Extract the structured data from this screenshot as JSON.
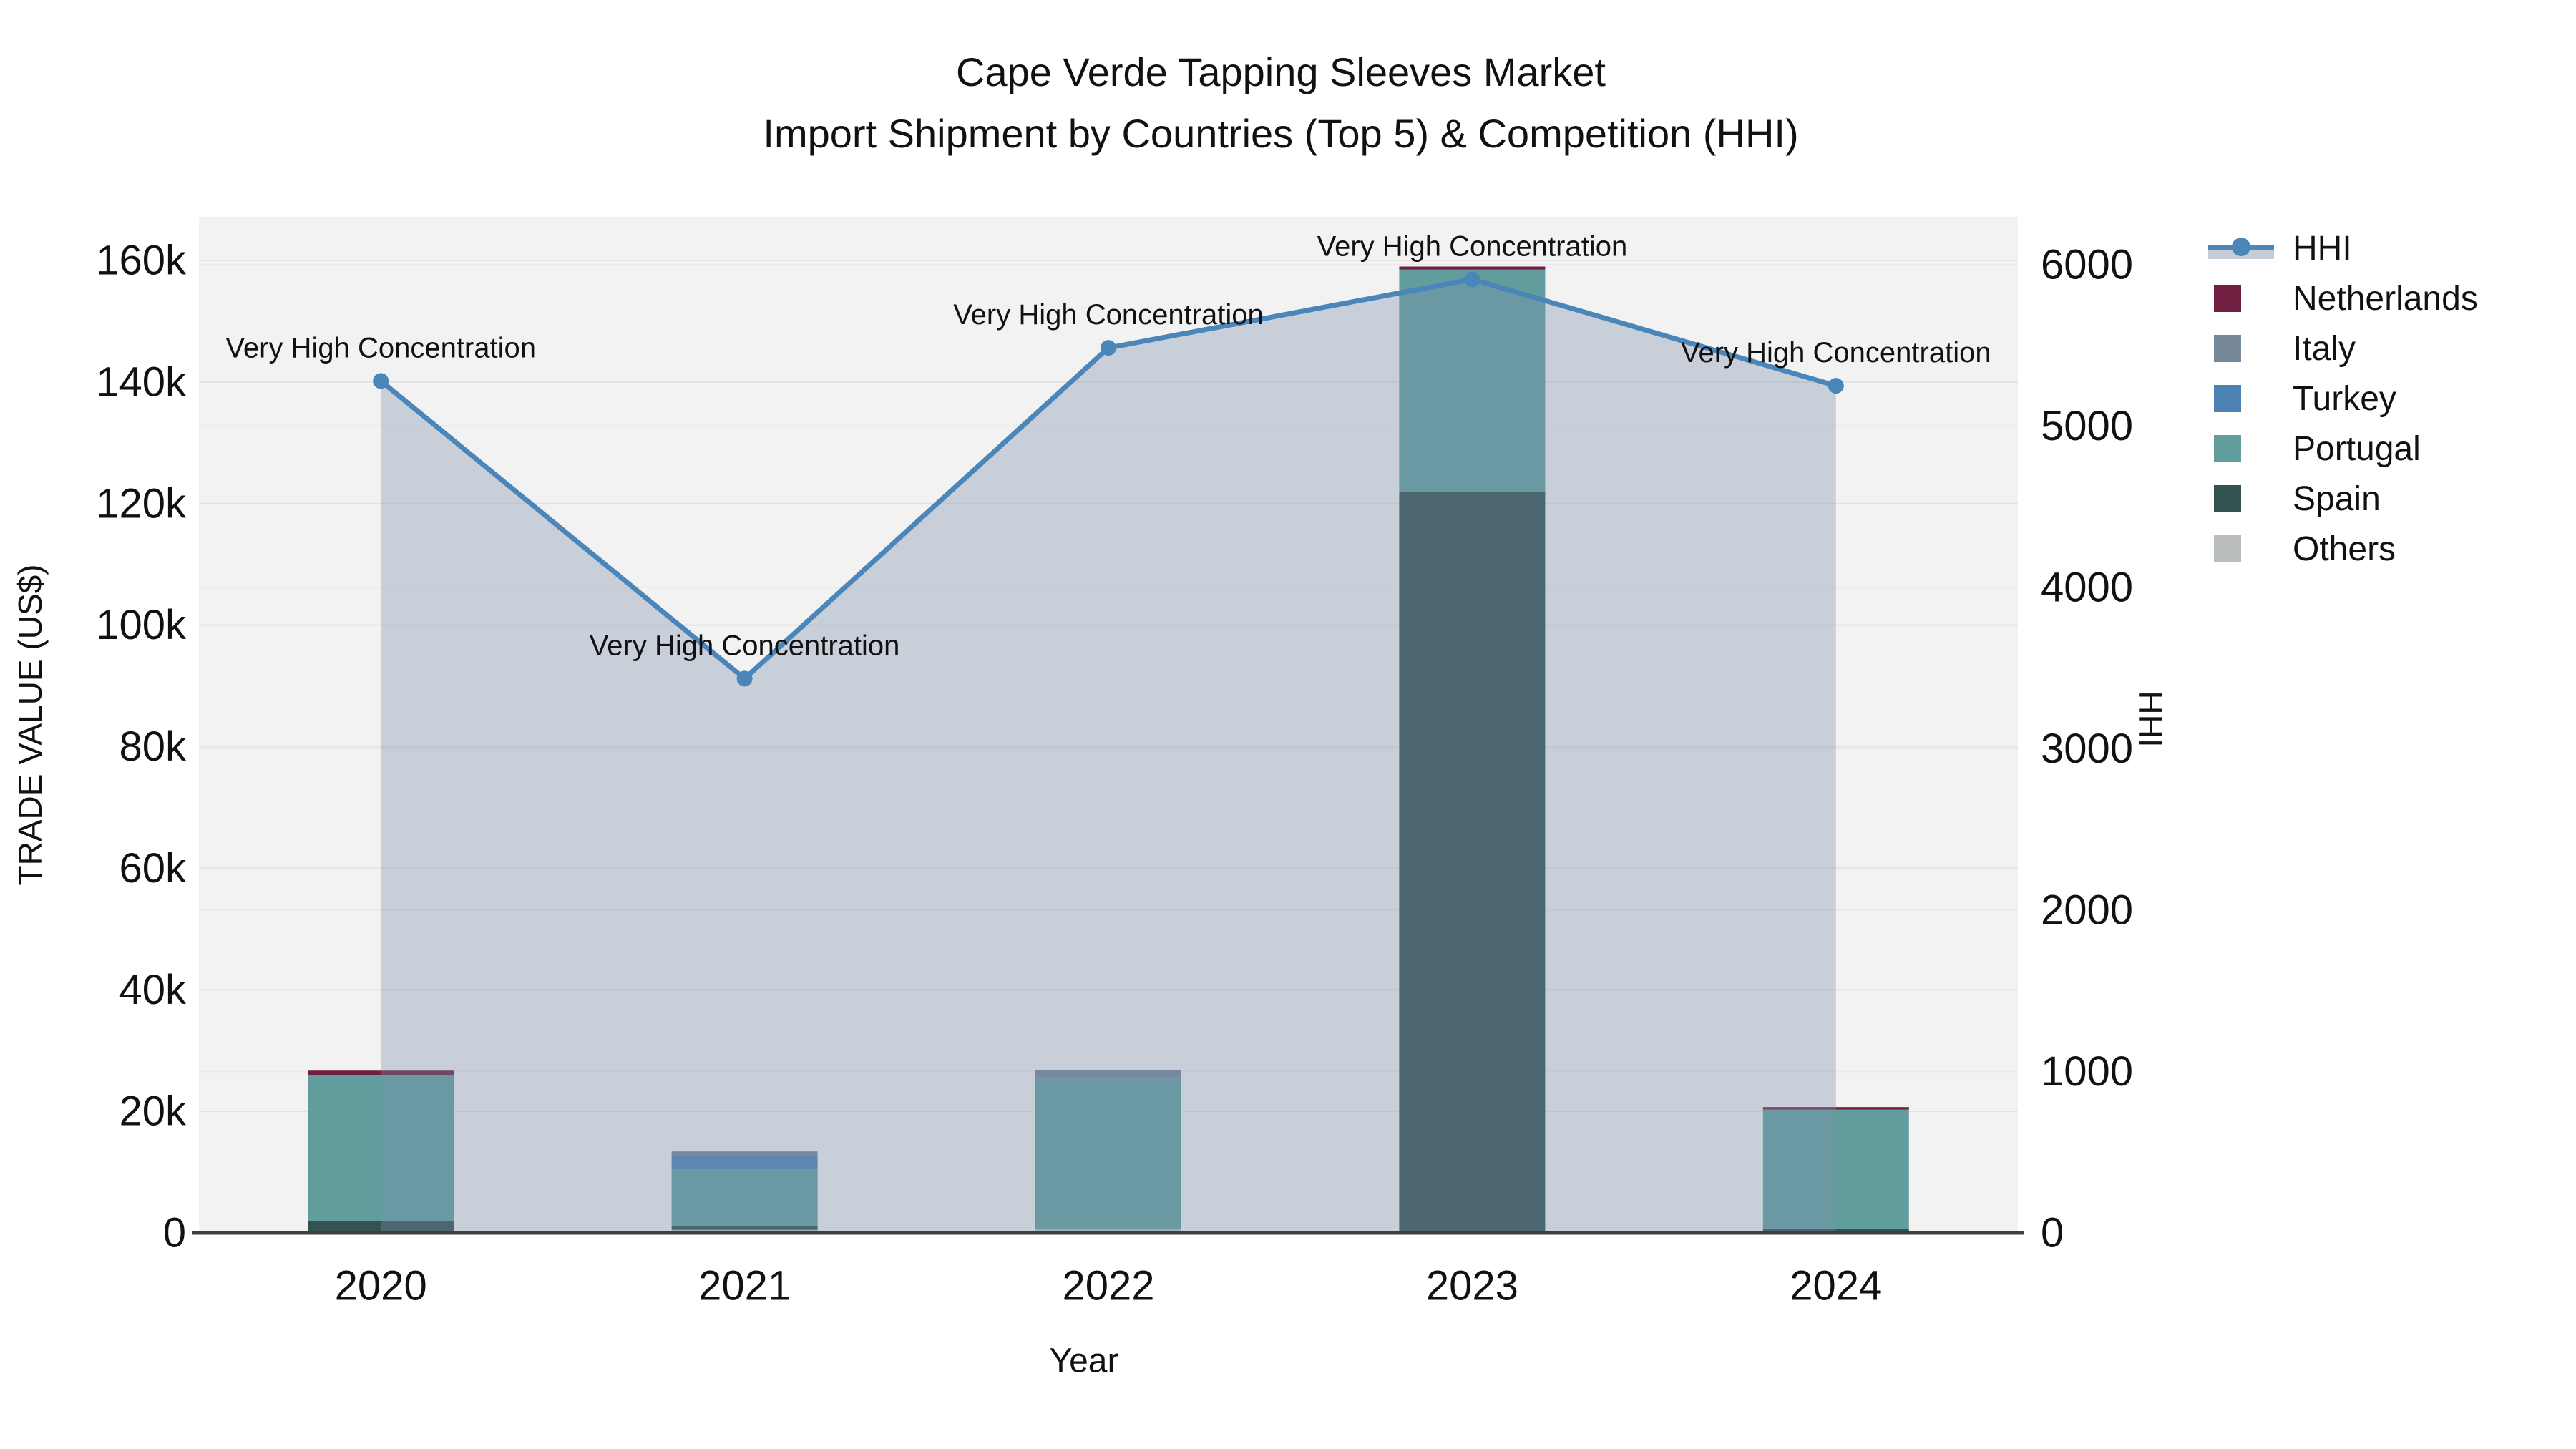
{
  "title": {
    "line1": "Cape Verde Tapping Sleeves Market",
    "line2": "Import Shipment by Countries (Top 5) & Competition (HHI)"
  },
  "legend": {
    "items": [
      {
        "label": "HHI",
        "type": "line",
        "color": "#4a86ba",
        "band_color": "#c5ccd5"
      },
      {
        "label": "Netherlands",
        "type": "bar",
        "color": "#701f41"
      },
      {
        "label": "Italy",
        "type": "bar",
        "color": "#77889b"
      },
      {
        "label": "Turkey",
        "type": "bar",
        "color": "#4d82b4"
      },
      {
        "label": "Portugal",
        "type": "bar",
        "color": "#629d9e"
      },
      {
        "label": "Spain",
        "type": "bar",
        "color": "#335250"
      },
      {
        "label": "Others",
        "type": "bar",
        "color": "#b9bdbe"
      }
    ]
  },
  "chart_data": {
    "type": "bar+line",
    "title": "Cape Verde Tapping Sleeves Market — Import Shipment by Countries (Top 5) & Competition (HHI)",
    "categories": [
      "2020",
      "2021",
      "2022",
      "2023",
      "2024"
    ],
    "stack_order_bottom_to_top": [
      "Others",
      "Spain",
      "Portugal",
      "Turkey",
      "Italy",
      "Netherlands"
    ],
    "series": [
      {
        "name": "Netherlands",
        "color": "#701f41",
        "values": [
          800,
          0,
          0,
          500,
          400
        ]
      },
      {
        "name": "Italy",
        "color": "#77889b",
        "values": [
          0,
          800,
          1400,
          0,
          0
        ]
      },
      {
        "name": "Turkey",
        "color": "#4d82b4",
        "values": [
          0,
          2000,
          0,
          0,
          0
        ]
      },
      {
        "name": "Portugal",
        "color": "#629d9e",
        "values": [
          24000,
          9400,
          24800,
          36500,
          19700
        ]
      },
      {
        "name": "Spain",
        "color": "#335250",
        "values": [
          1700,
          700,
          0,
          122000,
          600
        ]
      },
      {
        "name": "Others",
        "color": "#b9bdbe",
        "values": [
          200,
          500,
          600,
          0,
          0
        ]
      }
    ],
    "hhi_series": {
      "name": "HHI",
      "values": [
        5280,
        3435,
        5485,
        5910,
        5250
      ],
      "line_color": "#4a86ba",
      "fill_color": "rgba(122,142,171,0.35)",
      "annotations": [
        "Very High Concentration",
        "Very High Concentration",
        "Very High Concentration",
        "Very High Concentration",
        "Very High Concentration"
      ]
    },
    "axes": {
      "x": {
        "label": "Year",
        "tick_labels": [
          "2020",
          "2021",
          "2022",
          "2023",
          "2024"
        ]
      },
      "left": {
        "label": "TRADE VALUE (US$)",
        "max": 160000,
        "ticks": [
          {
            "v": 0,
            "label": "0"
          },
          {
            "v": 20000,
            "label": "20k"
          },
          {
            "v": 40000,
            "label": "40k"
          },
          {
            "v": 60000,
            "label": "60k"
          },
          {
            "v": 80000,
            "label": "80k"
          },
          {
            "v": 100000,
            "label": "100k"
          },
          {
            "v": 120000,
            "label": "120k"
          },
          {
            "v": 140000,
            "label": "140k"
          },
          {
            "v": 160000,
            "label": "160k"
          }
        ]
      },
      "right": {
        "label": "HHI",
        "max": 6000,
        "ticks": [
          {
            "v": 0,
            "label": "0"
          },
          {
            "v": 1000,
            "label": "1000"
          },
          {
            "v": 2000,
            "label": "2000"
          },
          {
            "v": 3000,
            "label": "3000"
          },
          {
            "v": 4000,
            "label": "4000"
          },
          {
            "v": 5000,
            "label": "5000"
          },
          {
            "v": 6000,
            "label": "6000"
          }
        ]
      }
    },
    "layout_hints": {
      "plot_bg": "#f2f2f2",
      "grid_color_left": "#e2e2e2",
      "grid_color_right": "#eaeaea",
      "axis_line_color": "#3f3f3f",
      "legend_position": "right"
    }
  }
}
